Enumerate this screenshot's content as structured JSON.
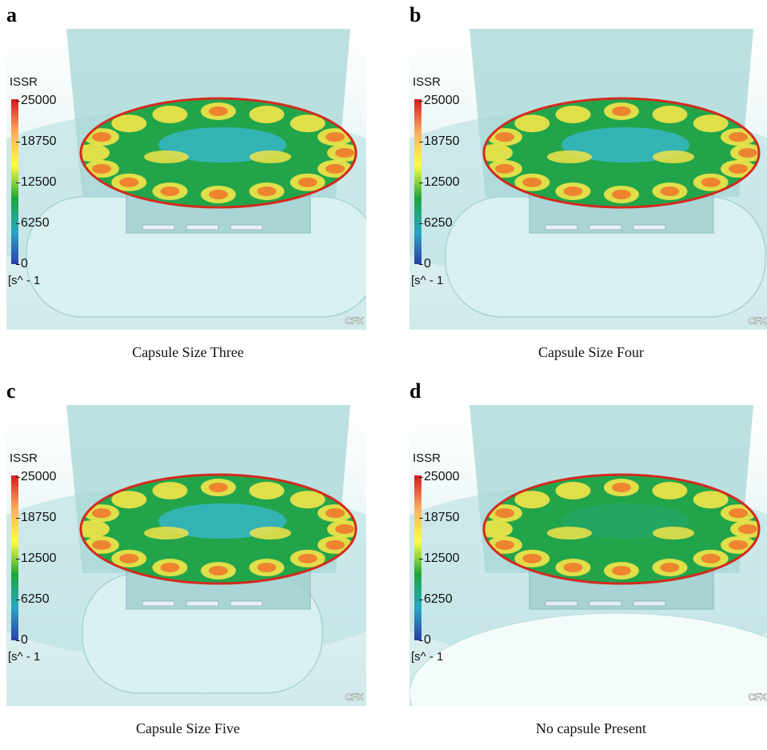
{
  "panels": [
    {
      "letter": "a",
      "caption": "Capsule Size Three",
      "variant": "size3"
    },
    {
      "letter": "b",
      "caption": "Capsule Size Four",
      "variant": "size4"
    },
    {
      "letter": "c",
      "caption": "Capsule Size Five",
      "variant": "size5"
    },
    {
      "letter": "d",
      "caption": "No capsule Present",
      "variant": "none"
    }
  ],
  "legend": {
    "title": "ISSR",
    "ticks": [
      "25000",
      "18750",
      "12500",
      "6250",
      "0"
    ],
    "unit": "[s^ - 1",
    "colors": [
      "#d7191c",
      "#fdae61",
      "#ffff3f",
      "#1fa53a",
      "#2aa6c4",
      "#2c3fa8"
    ]
  },
  "watermark": "CFX"
}
